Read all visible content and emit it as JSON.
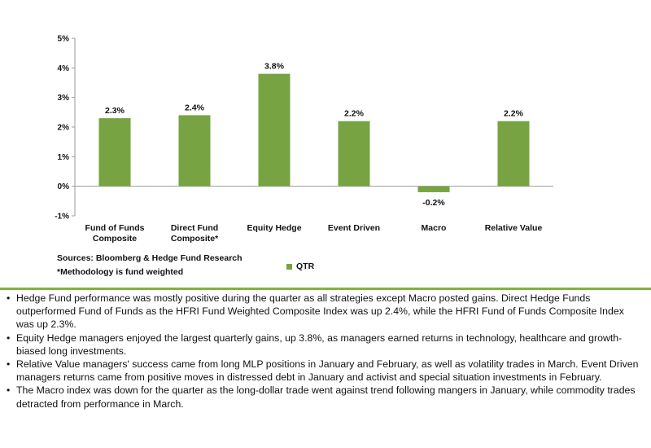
{
  "chart_data": {
    "type": "bar",
    "categories": [
      "Fund of Funds Composite",
      "Direct Fund Composite*",
      "Equity Hedge",
      "Event Driven",
      "Macro",
      "Relative Value"
    ],
    "category_lines": [
      [
        "Fund of Funds",
        "Composite"
      ],
      [
        "Direct Fund",
        "Composite*"
      ],
      [
        "Equity Hedge"
      ],
      [
        "Event Driven"
      ],
      [
        "Macro"
      ],
      [
        "Relative Value"
      ]
    ],
    "series": [
      {
        "name": "QTR",
        "values": [
          2.3,
          2.4,
          3.8,
          2.2,
          -0.2,
          2.2
        ]
      }
    ],
    "data_labels": [
      "2.3%",
      "2.4%",
      "3.8%",
      "2.2%",
      "-0.2%",
      "2.2%"
    ],
    "yticks": [
      -1,
      0,
      1,
      2,
      3,
      4,
      5
    ],
    "ytick_labels": [
      "-1%",
      "0%",
      "1%",
      "2%",
      "3%",
      "4%",
      "5%"
    ],
    "ylim": [
      -1,
      5
    ],
    "grid": false,
    "legend_position": "bottom",
    "bar_color": "#77a342",
    "axis_color": "#9a9a9a"
  },
  "notes": {
    "sources": "Sources: Bloomberg & Hedge Fund Research",
    "methodology": "*Methodology is fund weighted"
  },
  "legend": {
    "label": "QTR",
    "color": "#77a342"
  },
  "divider_color": "#7fb340",
  "bullet_char": "•",
  "bullets": [
    "Hedge Fund performance was mostly positive during the quarter as all strategies except Macro posted gains. Direct Hedge Funds outperformed Fund of Funds as the HFRI Fund Weighted Composite Index was up 2.4%, while the HFRI Fund of Funds Composite Index was up 2.3%.",
    "Equity Hedge managers enjoyed the largest quarterly gains, up 3.8%, as managers earned returns in technology, healthcare and growth-biased long investments.",
    "Relative Value managers' success came from long MLP positions in January and February, as well as volatility trades in March. Event Driven managers returns came from positive moves in distressed debt in January and activist and special situation investments in February.",
    "The Macro index was down for the quarter as the long-dollar trade went against trend following mangers in January, while commodity trades detracted from performance in March."
  ]
}
